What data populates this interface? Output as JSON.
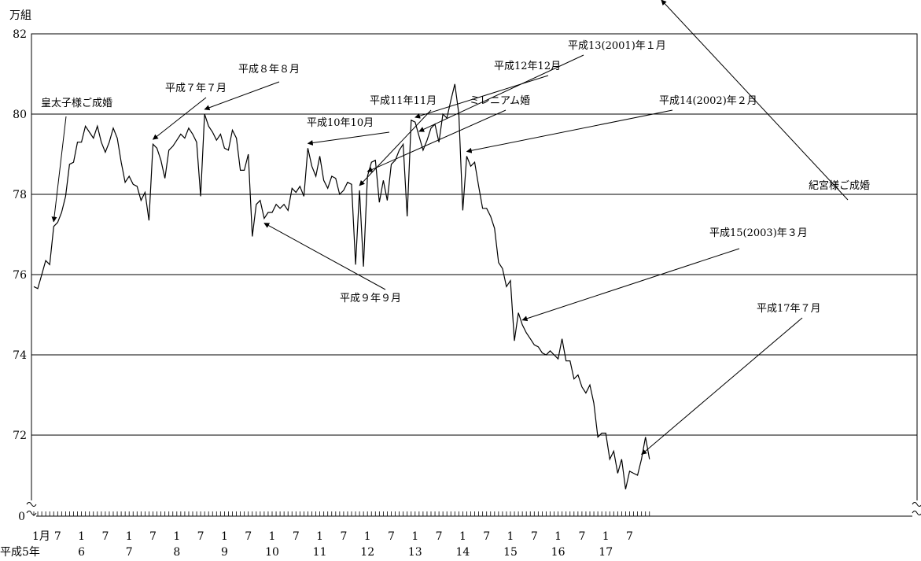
{
  "chart_data": {
    "type": "line",
    "unit_label": "万組",
    "ylim": [
      70,
      82
    ],
    "yticks": [
      "82",
      "80",
      "78",
      "76",
      "74",
      "72",
      "0"
    ],
    "axis_break": true,
    "grid": true,
    "x_month_labels": [
      "1月",
      "7",
      "1",
      "7",
      "1",
      "7",
      "1",
      "7",
      "1",
      "7",
      "1",
      "7",
      "1",
      "7",
      "1",
      "7",
      "1",
      "7",
      "1",
      "7",
      "1",
      "7",
      "1",
      "7",
      "1",
      "7"
    ],
    "x_year_labels": [
      "平成5年",
      "6",
      "7",
      "8",
      "9",
      "10",
      "11",
      "12",
      "13",
      "14",
      "15",
      "16",
      "17"
    ],
    "series": [
      {
        "values": [
          75.7,
          75.65,
          76.0,
          76.35,
          76.25,
          77.2,
          77.3,
          77.55,
          77.95,
          78.75,
          78.8,
          79.3,
          79.3,
          79.7,
          79.55,
          79.4,
          79.7,
          79.3,
          79.05,
          79.3,
          79.65,
          79.4,
          78.8,
          78.3,
          78.45,
          78.25,
          78.2,
          77.85,
          78.05,
          77.35,
          79.25,
          79.15,
          78.85,
          78.4,
          79.1,
          79.2,
          79.35,
          79.5,
          79.4,
          79.65,
          79.5,
          79.3,
          77.95,
          80.0,
          79.7,
          79.55,
          79.35,
          79.5,
          79.15,
          79.1,
          79.6,
          79.4,
          78.6,
          78.6,
          79.0,
          76.95,
          77.75,
          77.85,
          77.4,
          77.55,
          77.55,
          77.75,
          77.65,
          77.75,
          77.6,
          78.15,
          78.05,
          78.2,
          77.95,
          79.15,
          78.7,
          78.45,
          78.95,
          78.35,
          78.15,
          78.45,
          78.4,
          78.0,
          78.1,
          78.3,
          78.25,
          76.25,
          78.1,
          76.2,
          78.45,
          78.8,
          78.85,
          77.8,
          78.35,
          77.85,
          78.75,
          78.85,
          79.1,
          79.25,
          77.45,
          79.85,
          79.8,
          79.45,
          79.1,
          79.35,
          79.65,
          79.75,
          79.3,
          80.0,
          79.9,
          80.35,
          80.75,
          80.0,
          77.6,
          78.95,
          78.7,
          78.8,
          78.2,
          77.65,
          77.65,
          77.45,
          77.15,
          76.3,
          76.15,
          75.7,
          75.85,
          74.35,
          75.05,
          74.75,
          74.55,
          74.4,
          74.25,
          74.2,
          74.05,
          74.0,
          74.1,
          74.0,
          73.9,
          74.4,
          73.85,
          73.85,
          73.4,
          73.5,
          73.2,
          73.05,
          73.25,
          72.8,
          71.95,
          72.05,
          72.05,
          71.4,
          71.6,
          71.05,
          71.4,
          70.65,
          71.1,
          71.05,
          71.0,
          71.4,
          71.95,
          71.4
        ]
      }
    ],
    "annotations": [
      {
        "text": "皇太子様ご成婚"
      },
      {
        "text": "平成７年７月"
      },
      {
        "text": "平成８年８月"
      },
      {
        "text": "平成10年10月"
      },
      {
        "text": "平成９年９月"
      },
      {
        "text": "平成11年11月"
      },
      {
        "text": "ミレニアム婚"
      },
      {
        "text": "平成12年12月"
      },
      {
        "text": "平成13(2001)年１月"
      },
      {
        "text": "平成14(2002)年２月"
      },
      {
        "text": "紀宮様ご成婚"
      },
      {
        "text": "平成15(2003)年３月"
      },
      {
        "text": "平成17年７月"
      }
    ]
  }
}
